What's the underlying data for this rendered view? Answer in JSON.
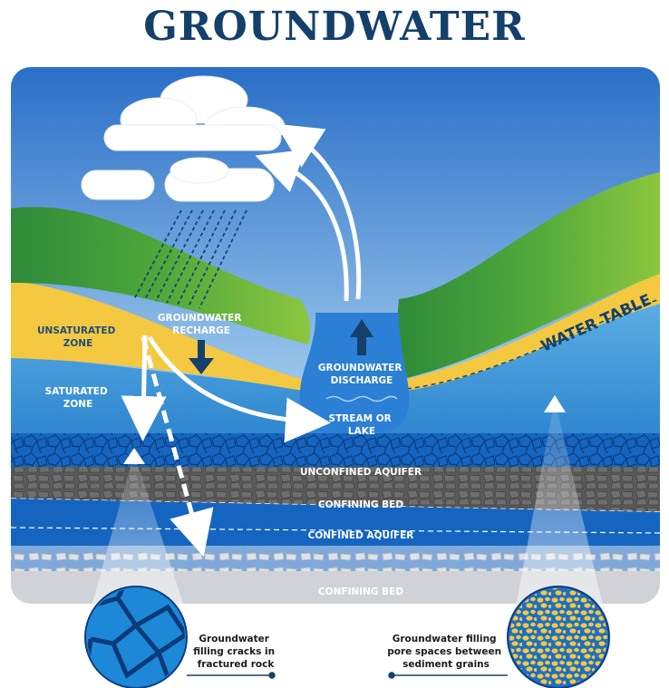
{
  "title": "GROUNDWATER",
  "labels": {
    "unsaturated_zone": [
      "UNSATURATED",
      "ZONE"
    ],
    "saturated_zone": [
      "SATURATED",
      "ZONE"
    ],
    "groundwater_recharge": [
      "GROUNDWATER",
      "RECHARGE"
    ],
    "groundwater_discharge": [
      "GROUNDWATER",
      "DISCHARGE"
    ],
    "stream_or_lake": [
      "STREAM OR",
      "LAKE"
    ],
    "water_table": "WATER TABLE",
    "unconfined_aquifer": "UNCONFINED AQUIFER",
    "confining_bed_upper": "CONFINING BED",
    "confined_aquifer": "CONFINED AQUIFER",
    "confining_bed_lower": "CONFINING BED"
  },
  "callouts": {
    "fractured_rock": [
      "Groundwater",
      "filling cracks in",
      "fractured rock"
    ],
    "sediment_grains": [
      "Groundwater filling",
      "pore spaces between",
      "sediment grains"
    ]
  },
  "colors": {
    "title": "#14406b",
    "sky_top": "#2a6fc7",
    "sky_bottom": "#bfe3f7",
    "hill_green": "#3f9a35",
    "hill_light": "#8dc63f",
    "unsaturated": "#f5c842",
    "saturated": "#4fa3dc",
    "aquifer": "#1565c0",
    "confining_bed": "#5a5a5a",
    "bedrock": "#cfd2d6",
    "water": "#2b7fd4"
  }
}
